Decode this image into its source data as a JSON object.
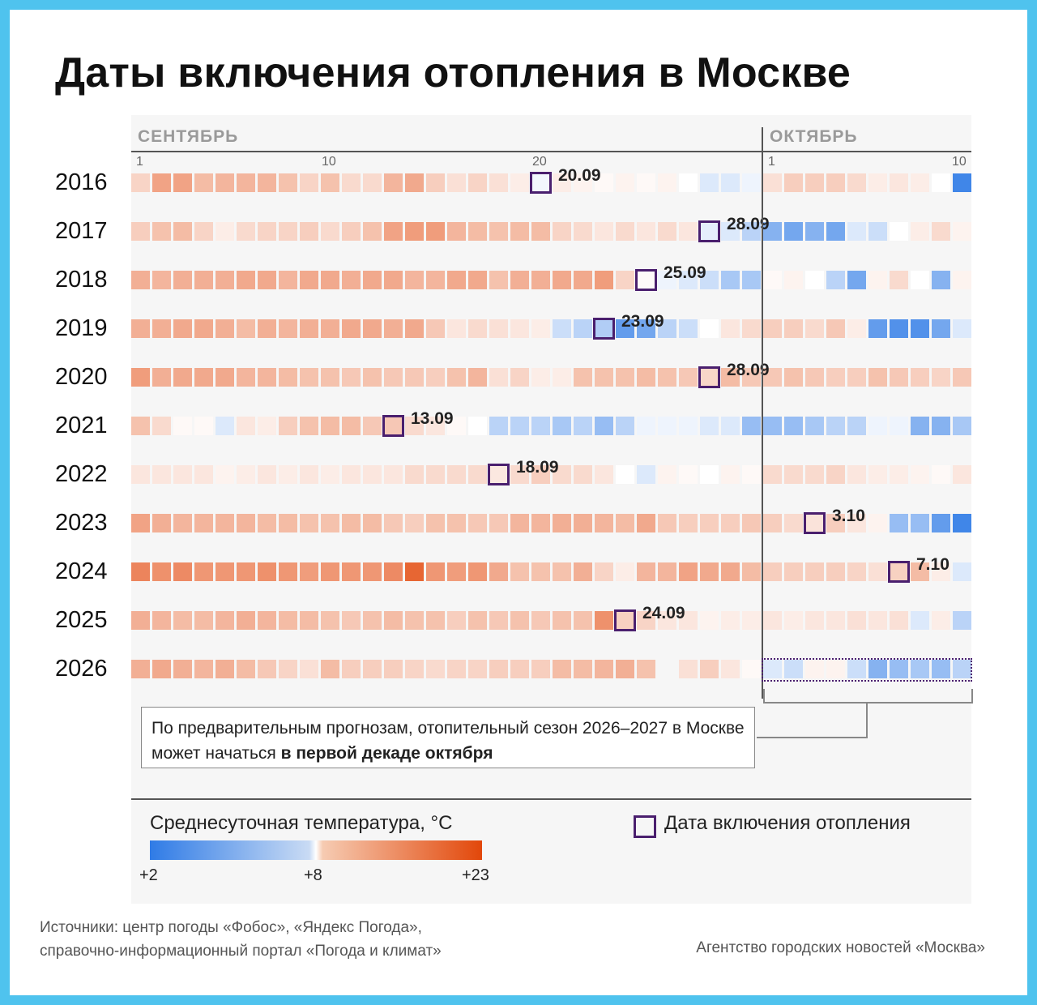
{
  "header": {
    "title": "Даты включения отопления в Москве"
  },
  "months": [
    "СЕНТЯБРЬ",
    "ОКТЯБРЬ"
  ],
  "day_ticks": [
    {
      "label": "1",
      "month": "sep",
      "day": 1
    },
    {
      "label": "10",
      "month": "sep",
      "day": 10
    },
    {
      "label": "20",
      "month": "sep",
      "day": 20
    },
    {
      "label": "1",
      "month": "oct",
      "day": 1
    },
    {
      "label": "10",
      "month": "oct",
      "day": 10
    }
  ],
  "note": {
    "text": "По предварительным прогнозам, отопительный сезон 2026–2027 в Москве может начаться ",
    "bold": "в первой декаде октября"
  },
  "legend": {
    "title": "Среднесуточная температура, °C",
    "ticks": [
      "+2",
      "+8",
      "+23"
    ],
    "marker_label": "Дата включения отопления"
  },
  "footer": {
    "sources_line1": "Источники: центр погоды «Фобос»,  «Яндекс Погода»,",
    "sources_line2": "справочно-информационный портал «Погода и климат»",
    "agency": "Агентство городских новостей «Москва»"
  },
  "colors": {
    "cold": "#2f7be6",
    "mid": "#ffffff",
    "warm": "#e2470a",
    "marker": "#4a1f6e"
  },
  "chart_data": {
    "type": "heatmap",
    "title": "Даты включения отопления в Москве",
    "x": "days 1–30 September and 1–10 October",
    "color_scale": {
      "min": 2,
      "mid": 8,
      "max": 23,
      "unit": "°C"
    },
    "rows": [
      {
        "year": "2016",
        "heating_on": "20.09",
        "on_index": 19,
        "temps": [
          11.5,
          15.5,
          15.5,
          13.5,
          14,
          14,
          14,
          13,
          11.5,
          13,
          11,
          11,
          14,
          15,
          12,
          10.5,
          11.5,
          10.5,
          9.5,
          7.5,
          9.5,
          9,
          8.5,
          9,
          8.5,
          9,
          8,
          7,
          7,
          7.5,
          10.5,
          12,
          12,
          12,
          11,
          9.5,
          10,
          9.5,
          8,
          2.5
        ]
      },
      {
        "year": "2017",
        "heating_on": "28.09",
        "on_index": 27,
        "temps": [
          12,
          13,
          13.5,
          11.5,
          9.5,
          11,
          11.5,
          11.5,
          12,
          11,
          12,
          13,
          15.5,
          16,
          16,
          14,
          13.5,
          13,
          13.5,
          13.5,
          11.5,
          11,
          10,
          11,
          10,
          11,
          10,
          7,
          7,
          6,
          4.5,
          4,
          4.5,
          4,
          7,
          6.5,
          8,
          9.5,
          11,
          9
        ]
      },
      {
        "year": "2018",
        "heating_on": "25.09",
        "on_index": 24,
        "temps": [
          14.5,
          14,
          14.5,
          14.5,
          14.5,
          15,
          15,
          14,
          15,
          15,
          14.5,
          15,
          15,
          14,
          14,
          15,
          15,
          13,
          14.5,
          14.5,
          15,
          15,
          16,
          11.5,
          8.5,
          7.5,
          7,
          6.5,
          5.5,
          5.5,
          8.5,
          9,
          8,
          6,
          4,
          9,
          11,
          8,
          4.5,
          9
        ]
      },
      {
        "year": "2019",
        "heating_on": "23.09",
        "on_index": 22,
        "temps": [
          14.5,
          14.5,
          15,
          15,
          14.5,
          13.5,
          14.5,
          14,
          14.5,
          14.5,
          15,
          15,
          14.5,
          15,
          12.5,
          10,
          11,
          10.5,
          10,
          9.5,
          6.5,
          6,
          5,
          3.5,
          4,
          6,
          6.5,
          8,
          10,
          11,
          12,
          12,
          11,
          12.5,
          9.5,
          3.5,
          3,
          3,
          4,
          7
        ]
      },
      {
        "year": "2020",
        "heating_on": "28.09",
        "on_index": 27,
        "temps": [
          16,
          14.5,
          15,
          15,
          15,
          14,
          14,
          13.5,
          13,
          13,
          12.5,
          13,
          12.5,
          12.5,
          12,
          13,
          14,
          10.5,
          11.5,
          9.5,
          9.5,
          13,
          13,
          13,
          13.5,
          13,
          12.5,
          12.5,
          13.5,
          12.5,
          12.5,
          13,
          12.5,
          12,
          12,
          13,
          12.5,
          12,
          11.5,
          12.5
        ]
      },
      {
        "year": "2021",
        "heating_on": "13.09",
        "on_index": 12,
        "temps": [
          13,
          11,
          8.5,
          8.5,
          7,
          10,
          9.5,
          12,
          13,
          13.5,
          13.5,
          12.5,
          14,
          11,
          10,
          8.5,
          8,
          6,
          6,
          6,
          5.5,
          6,
          5,
          6,
          7.5,
          7.5,
          7.5,
          7,
          7,
          5,
          5,
          5,
          5.5,
          6,
          6,
          7.5,
          7.5,
          4.5,
          4.5,
          5.5
        ]
      },
      {
        "year": "2022",
        "heating_on": "18.09",
        "on_index": 17,
        "temps": [
          10,
          10,
          10,
          10,
          9,
          9.5,
          10,
          9.5,
          10,
          9.5,
          10,
          10,
          10,
          11,
          11,
          11,
          11,
          10.5,
          11,
          12,
          11,
          11,
          10,
          8,
          7,
          9,
          8.5,
          8,
          9,
          8.5,
          11,
          11,
          11,
          11.5,
          10,
          9.5,
          9.5,
          9,
          8.5,
          10
        ]
      },
      {
        "year": "2023",
        "heating_on": "3.10",
        "on_index": 32,
        "temps": [
          15.5,
          14.5,
          14,
          14,
          14,
          14,
          13.5,
          13.5,
          13,
          13,
          13.5,
          13.5,
          12.5,
          12,
          13,
          13,
          12.5,
          12.5,
          14,
          14,
          14.5,
          14.5,
          14,
          13.5,
          15,
          12.5,
          12,
          12,
          12,
          12.5,
          12,
          11,
          11,
          12,
          10,
          9,
          5,
          5,
          3.5,
          2.5
        ]
      },
      {
        "year": "2024",
        "heating_on": "7.10",
        "on_index": 36,
        "temps": [
          18,
          17,
          17.5,
          16.5,
          16.5,
          16.5,
          17,
          16.5,
          16,
          16.5,
          16.5,
          16.5,
          17.5,
          20.5,
          16.5,
          16,
          16.5,
          15,
          13,
          13,
          13,
          14.5,
          11.5,
          9.5,
          14,
          14,
          15.5,
          15,
          15,
          13.5,
          12,
          12,
          12,
          12,
          11.5,
          10.5,
          13,
          13.5,
          9.5,
          7
        ]
      },
      {
        "year": "2025",
        "heating_on": "24.09",
        "on_index": 23,
        "temps": [
          14.5,
          14,
          13.5,
          13.5,
          14,
          14.5,
          14,
          13.5,
          13.5,
          13,
          12.5,
          13,
          13.5,
          13,
          13,
          12,
          13,
          12.5,
          13,
          12.5,
          13,
          13,
          17,
          13,
          11.5,
          10,
          10,
          9,
          9.5,
          9.5,
          10,
          9.5,
          10,
          10,
          10.5,
          10,
          10.5,
          7,
          9.5,
          6
        ]
      },
      {
        "year": "2026",
        "heating_on": "",
        "on_index": null,
        "forecast_from": "1.10",
        "temps": [
          14.5,
          15,
          14.5,
          14,
          14.5,
          13.5,
          12.5,
          11.5,
          10.5,
          13.5,
          12,
          12,
          12,
          11.5,
          11,
          11.5,
          11.5,
          12,
          12,
          12,
          13.5,
          13.5,
          14,
          14.5,
          13,
          null,
          10.5,
          12,
          10,
          8.5,
          7,
          6.5,
          9,
          9,
          6.5,
          4.5,
          5,
          5.5,
          5,
          6
        ]
      }
    ]
  }
}
